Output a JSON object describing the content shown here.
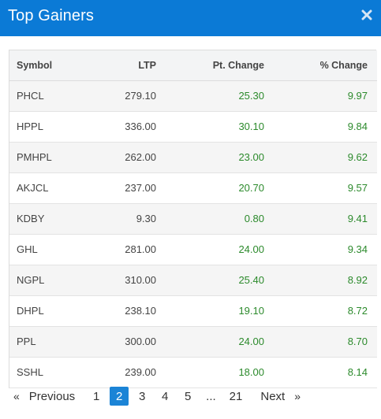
{
  "modal": {
    "title": "Top Gainers",
    "close_icon": "close-icon"
  },
  "table": {
    "headers": {
      "symbol": "Symbol",
      "ltp": "LTP",
      "pt_change": "Pt. Change",
      "pct_change": "% Change"
    },
    "rows": [
      {
        "symbol": "PHCL",
        "ltp": "279.10",
        "pt_change": "25.30",
        "pct_change": "9.97"
      },
      {
        "symbol": "HPPL",
        "ltp": "336.00",
        "pt_change": "30.10",
        "pct_change": "9.84"
      },
      {
        "symbol": "PMHPL",
        "ltp": "262.00",
        "pt_change": "23.00",
        "pct_change": "9.62"
      },
      {
        "symbol": "AKJCL",
        "ltp": "237.00",
        "pt_change": "20.70",
        "pct_change": "9.57"
      },
      {
        "symbol": "KDBY",
        "ltp": "9.30",
        "pt_change": "0.80",
        "pct_change": "9.41"
      },
      {
        "symbol": "GHL",
        "ltp": "281.00",
        "pt_change": "24.00",
        "pct_change": "9.34"
      },
      {
        "symbol": "NGPL",
        "ltp": "310.00",
        "pt_change": "25.40",
        "pct_change": "8.92"
      },
      {
        "symbol": "DHPL",
        "ltp": "238.10",
        "pt_change": "19.10",
        "pct_change": "8.72"
      },
      {
        "symbol": "PPL",
        "ltp": "300.00",
        "pt_change": "24.00",
        "pct_change": "8.70"
      },
      {
        "symbol": "SSHL",
        "ltp": "239.00",
        "pt_change": "18.00",
        "pct_change": "8.14"
      }
    ]
  },
  "pagination": {
    "prev_arrow": "«",
    "prev_label": "Previous",
    "pages": [
      "1",
      "2",
      "3",
      "4",
      "5"
    ],
    "ellipsis": "...",
    "last_page": "21",
    "next_label": "Next",
    "next_arrow": "»",
    "current_page": "2"
  },
  "colors": {
    "header_bg": "#0b7ad6",
    "positive": "#2c8a2c",
    "active_page": "#1b84d6"
  }
}
